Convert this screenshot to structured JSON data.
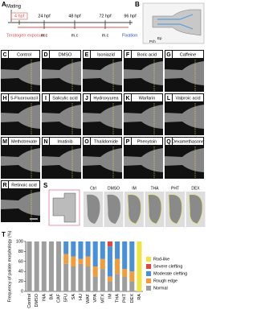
{
  "timeline": {
    "letter": "A",
    "mating": "Mating",
    "times": [
      "4 hpf",
      "24 hpf",
      "48 hpf",
      "72 hpf",
      "96 hpf"
    ],
    "markers": [
      "m.c",
      "m.c",
      "m.c"
    ],
    "exposure": "Teratogen exposure",
    "fixation": "Fixation"
  },
  "schematic": {
    "letter": "B",
    "labels": [
      "Ep",
      "Pch"
    ]
  },
  "images": [
    {
      "letter": "C",
      "label": "Control"
    },
    {
      "letter": "D",
      "label": "DMSO"
    },
    {
      "letter": "E",
      "label": "Isoniazid"
    },
    {
      "letter": "F",
      "label": "Boric acid"
    },
    {
      "letter": "G",
      "label": "Caffeine"
    },
    {
      "letter": "H",
      "label": "5-Fluorouracil"
    },
    {
      "letter": "I",
      "label": "Salicylic acid"
    },
    {
      "letter": "J",
      "label": "Hydroxyurea"
    },
    {
      "letter": "K",
      "label": "Warfarin"
    },
    {
      "letter": "L",
      "label": "Valproic acid"
    },
    {
      "letter": "M",
      "label": "Methotrexate"
    },
    {
      "letter": "N",
      "label": "Imatinib"
    },
    {
      "letter": "O",
      "label": "Thalidomide"
    },
    {
      "letter": "P",
      "label": "Phenytoin"
    },
    {
      "letter": "Q",
      "label": "Dexamethasone"
    },
    {
      "letter": "R",
      "label": "Retinoic acid"
    }
  ],
  "panel_s": {
    "letter": "S",
    "labels": [
      "Ctrl",
      "DMSO",
      "IM",
      "THA",
      "PHT",
      "DEX"
    ]
  },
  "chart_data": {
    "type": "stacked_bar",
    "letter": "T",
    "ylabel": "Frequency of palate morphology (%)",
    "categories": [
      "Control",
      "DMSO",
      "INA",
      "BA",
      "CAF",
      "5FU",
      "SA",
      "HU",
      "WAF",
      "VPA",
      "MTX",
      "IM",
      "THA",
      "PHT",
      "DEX",
      "RA"
    ],
    "series": [
      {
        "name": "Rod-like",
        "color": "#f0e442",
        "values": [
          0,
          0,
          0,
          0,
          0,
          0,
          0,
          0,
          0,
          0,
          0,
          0,
          0,
          0,
          0,
          100
        ]
      },
      {
        "name": "Severe clefting",
        "color": "#e0463c",
        "values": [
          0,
          0,
          0,
          0,
          0,
          0,
          0,
          0,
          0,
          0,
          0,
          10,
          0,
          0,
          0,
          0
        ]
      },
      {
        "name": "Moderate clefting",
        "color": "#4a90d9",
        "values": [
          0,
          0,
          0,
          0,
          0,
          25,
          30,
          35,
          30,
          50,
          35,
          60,
          35,
          55,
          60,
          0
        ]
      },
      {
        "name": "Rough edge",
        "color": "#f39c3c",
        "values": [
          0,
          0,
          0,
          0,
          0,
          20,
          20,
          10,
          20,
          20,
          20,
          10,
          30,
          15,
          20,
          0
        ]
      },
      {
        "name": "Normal",
        "color": "#9e9e9e",
        "values": [
          100,
          100,
          100,
          100,
          100,
          55,
          50,
          55,
          50,
          30,
          45,
          20,
          35,
          30,
          20,
          0
        ]
      }
    ],
    "ylim": [
      0,
      100
    ],
    "yticks": [
      0,
      20,
      40,
      60,
      80,
      100
    ],
    "legend": "right"
  }
}
